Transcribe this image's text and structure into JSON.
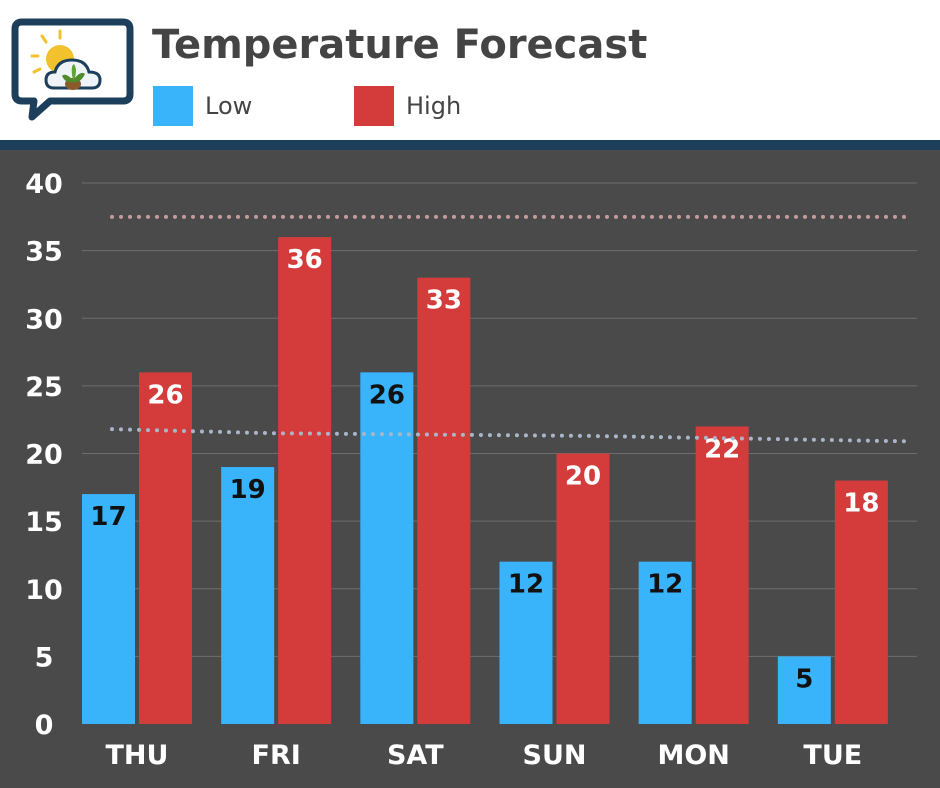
{
  "header": {
    "title": "Temperature Forecast",
    "logo_icon": "weather-plant-logo-icon"
  },
  "colors": {
    "low": "#39b4fb",
    "high": "#d43c3c",
    "background": "#4a4a4a",
    "header_bar": "#1d3f5c",
    "grid": "#6e6e6e",
    "avg_low_line": "#a9b6c9",
    "avg_high_line": "#c79a9a"
  },
  "chart_data": {
    "type": "bar",
    "title": "Temperature Forecast",
    "xlabel": "",
    "ylabel": "",
    "ylim": [
      0,
      40
    ],
    "yticks": [
      "0",
      "5",
      "10",
      "15",
      "20",
      "25",
      "30",
      "35",
      "40"
    ],
    "categories": [
      "THU",
      "FRI",
      "SAT",
      "SUN",
      "MON",
      "TUE"
    ],
    "series": [
      {
        "name": "Low",
        "values": [
          17,
          19,
          26,
          12,
          12,
          5
        ]
      },
      {
        "name": "High",
        "values": [
          26,
          36,
          33,
          20,
          22,
          18
        ]
      }
    ],
    "reference_lines": [
      {
        "series": "Low",
        "style": "dotted",
        "values": [
          21.8,
          21.5,
          21.4,
          21.3,
          21.1,
          20.9
        ]
      },
      {
        "series": "High",
        "style": "dotted",
        "values": [
          37.5,
          37.5,
          37.5,
          37.5,
          37.5,
          37.5
        ]
      }
    ],
    "legend": "top-left",
    "grid": true
  }
}
